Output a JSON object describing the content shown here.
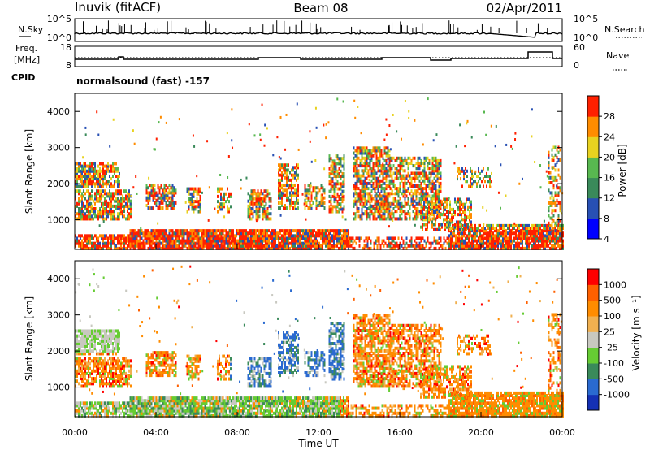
{
  "header": {
    "station": "Inuvik (fitACF)",
    "beam": "Beam 08",
    "date": "02/Apr/2011"
  },
  "noise_panel": {
    "left_label": "N.Sky",
    "right_label": "N.Search",
    "left_ticks": [
      "10^5",
      "10^0"
    ],
    "right_ticks": [
      "10^5",
      "10^0"
    ]
  },
  "freq_panel": {
    "left_label_1": "Freq.",
    "left_label_2": "[MHz]",
    "right_label": "Nave",
    "left_ticks": [
      "18",
      "8"
    ],
    "right_ticks": [
      "60",
      "0"
    ]
  },
  "cpid": {
    "label": "CPID",
    "program": "normalsound (fast) -157"
  },
  "chart_data": [
    {
      "type": "heatmap",
      "name": "power",
      "ylabel": "Slant Range [km]",
      "ylim": [
        180,
        4500
      ],
      "yticks": [
        "1000",
        "2000",
        "3000",
        "4000"
      ],
      "xlim_hours": [
        0,
        24
      ],
      "colorbar_title": "Power [dB]",
      "colorbar_ticks": [
        "28",
        "24",
        "20",
        "16",
        "12",
        "8",
        "4"
      ],
      "colors": [
        "#0000ff",
        "#2850b4",
        "#3a8a5a",
        "#58b850",
        "#e8d220",
        "#ff8c00",
        "#ff2000"
      ],
      "grid": false
    },
    {
      "type": "heatmap",
      "name": "velocity",
      "ylabel": "Slant Range [km]",
      "ylim": [
        180,
        4500
      ],
      "yticks": [
        "1000",
        "2000",
        "3000",
        "4000"
      ],
      "xlim_hours": [
        0,
        24
      ],
      "colorbar_title": "Velocity [m s⁻¹]",
      "colorbar_ticks": [
        "1000",
        "500",
        "100",
        "25",
        "-25",
        "-100",
        "-500",
        "-1000"
      ],
      "colors": [
        "#1430b4",
        "#2a6ad0",
        "#3a8a5a",
        "#66cc33",
        "#c8c8c0",
        "#f0b050",
        "#ff8c00",
        "#ff6000",
        "#ff0000"
      ],
      "grid": false
    }
  ],
  "xaxis": {
    "ticks": [
      "00:00",
      "04:00",
      "08:00",
      "12:00",
      "16:00",
      "20:00",
      "00:00"
    ],
    "label": "Time UT"
  }
}
